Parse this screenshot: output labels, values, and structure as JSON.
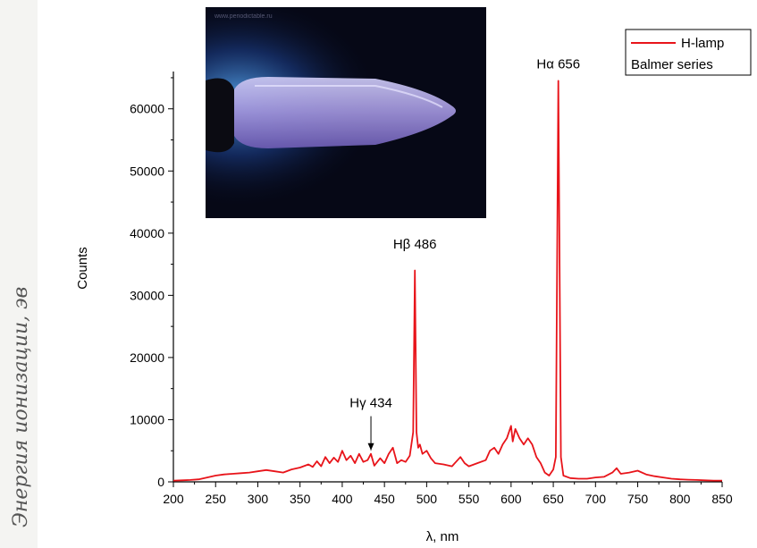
{
  "chart_data": {
    "type": "line",
    "xlabel": "λ, nm",
    "ylabel": "Counts",
    "xlim": [
      200,
      850
    ],
    "ylim": [
      0,
      66000
    ],
    "x_ticks": [
      200,
      250,
      300,
      350,
      400,
      450,
      500,
      550,
      600,
      650,
      700,
      750,
      800,
      850
    ],
    "y_ticks": [
      0,
      10000,
      20000,
      30000,
      40000,
      50000,
      60000
    ],
    "grid": false,
    "legend": {
      "position": "top-right",
      "entries": [
        "H-lamp",
        "Balmer series"
      ]
    },
    "series": [
      {
        "name": "H-lamp",
        "color": "#e8141a",
        "x": [
          200,
          210,
          220,
          230,
          240,
          250,
          260,
          270,
          280,
          290,
          300,
          310,
          320,
          330,
          340,
          350,
          360,
          365,
          370,
          375,
          380,
          385,
          390,
          395,
          400,
          405,
          410,
          415,
          420,
          425,
          430,
          434,
          438,
          445,
          450,
          455,
          460,
          465,
          470,
          475,
          480,
          484,
          486,
          488,
          490,
          492,
          495,
          500,
          505,
          510,
          520,
          530,
          540,
          545,
          550,
          560,
          570,
          575,
          580,
          585,
          590,
          595,
          600,
          602,
          605,
          610,
          615,
          620,
          625,
          630,
          635,
          640,
          645,
          650,
          653,
          656,
          659,
          662,
          670,
          680,
          690,
          700,
          710,
          720,
          725,
          730,
          740,
          750,
          760,
          770,
          780,
          790,
          800,
          810,
          820,
          830,
          840,
          850
        ],
        "y": [
          200,
          250,
          300,
          400,
          700,
          1000,
          1200,
          1300,
          1400,
          1500,
          1700,
          1900,
          1700,
          1500,
          2000,
          2300,
          2800,
          2400,
          3300,
          2500,
          4000,
          3000,
          3900,
          3200,
          5000,
          3500,
          4200,
          3000,
          4500,
          3200,
          3500,
          4500,
          2600,
          3800,
          3000,
          4500,
          5500,
          3000,
          3500,
          3200,
          4200,
          8000,
          34000,
          8000,
          5500,
          6000,
          4500,
          5000,
          3800,
          3000,
          2800,
          2500,
          4000,
          3000,
          2500,
          3000,
          3500,
          5000,
          5500,
          4500,
          6000,
          7000,
          9000,
          6500,
          8500,
          7000,
          6000,
          7000,
          6000,
          4000,
          3000,
          1500,
          1000,
          2000,
          4000,
          64500,
          4000,
          1000,
          600,
          500,
          500,
          700,
          800,
          1500,
          2200,
          1300,
          1500,
          1800,
          1200,
          900,
          700,
          500,
          400,
          350,
          300,
          250,
          200,
          200
        ]
      }
    ],
    "annotations": [
      {
        "text": "Hγ 434",
        "x": 434,
        "y": 12000,
        "arrow": true
      },
      {
        "text": "Hβ 486",
        "x": 486,
        "y": 37500
      },
      {
        "text": "Hα 656",
        "x": 656,
        "y": 66500
      }
    ],
    "inset_image": "hydrogen discharge tube glowing blue-violet"
  },
  "side_text": "Энергия ионизации, эв"
}
